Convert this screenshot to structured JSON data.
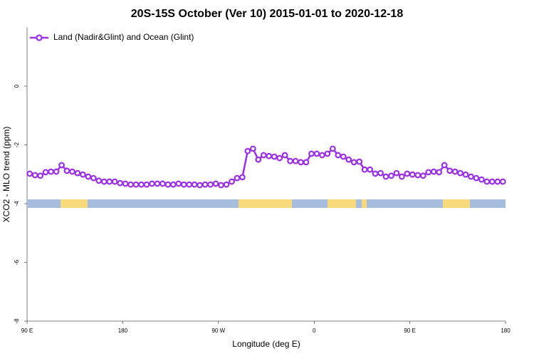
{
  "chart_data": {
    "type": "line",
    "title": "20S-15S October (Ver 10)   2015-01-01 to 2020-12-18",
    "x_label": "Longitude (deg E)",
    "y_label": "XCO2 - MLO trend (ppm)",
    "xlim": [
      90,
      540
    ],
    "xticks": [
      {
        "value": 90,
        "label": "90 E"
      },
      180,
      {
        "value": 270,
        "label": "90 W"
      },
      {
        "value": 360,
        "label": "0"
      },
      {
        "value": 450,
        "label": "90 E"
      },
      {
        "value": 540,
        "label": "180"
      }
    ],
    "ylim": [
      -8,
      2
    ],
    "yticks": [
      -8,
      -6,
      -4,
      -2,
      0
    ],
    "legend": "top-left",
    "series": [
      {
        "name": "Land (Nadir&Glint) and Ocean (Glint)",
        "color": "#9b30e8",
        "x": [
          92.5,
          97.5,
          102.5,
          107.5,
          112.5,
          117.5,
          122.5,
          127.5,
          132.5,
          137.5,
          142.5,
          147.5,
          152.5,
          157.5,
          162.5,
          167.5,
          172.5,
          177.5,
          182.5,
          187.5,
          192.5,
          197.5,
          202.5,
          207.5,
          212.5,
          217.5,
          222.5,
          227.5,
          232.5,
          237.5,
          242.5,
          247.5,
          252.5,
          257.5,
          262.5,
          267.5,
          272.5,
          277.5,
          282.5,
          287.5,
          292.5,
          297.5,
          302.5,
          307.5,
          312.5,
          317.5,
          322.5,
          327.5,
          332.5,
          337.5,
          342.5,
          347.5,
          352.5,
          357.5,
          362.5,
          367.5,
          372.5,
          377.5,
          382.5,
          387.5,
          392.5,
          397.5,
          402.5,
          407.5,
          412.5,
          417.5,
          422.5,
          427.5,
          432.5,
          437.5,
          442.5,
          447.5,
          452.5,
          457.5,
          462.5,
          467.5,
          472.5,
          477.5,
          482.5,
          487.5,
          492.5,
          497.5,
          502.5,
          507.5,
          512.5,
          517.5,
          522.5,
          527.5,
          532.5,
          537.5
        ],
        "values": [
          -2.98,
          -3.03,
          -3.05,
          -2.93,
          -2.91,
          -2.91,
          -2.69,
          -2.88,
          -2.91,
          -2.96,
          -3.01,
          -3.08,
          -3.13,
          -3.22,
          -3.25,
          -3.25,
          -3.25,
          -3.3,
          -3.32,
          -3.35,
          -3.35,
          -3.35,
          -3.35,
          -3.32,
          -3.32,
          -3.32,
          -3.35,
          -3.35,
          -3.32,
          -3.35,
          -3.35,
          -3.35,
          -3.37,
          -3.35,
          -3.35,
          -3.32,
          -3.37,
          -3.35,
          -3.25,
          -3.13,
          -3.1,
          -2.21,
          -2.13,
          -2.5,
          -2.35,
          -2.38,
          -2.4,
          -2.45,
          -2.35,
          -2.55,
          -2.55,
          -2.59,
          -2.59,
          -2.3,
          -2.3,
          -2.35,
          -2.3,
          -2.13,
          -2.35,
          -2.4,
          -2.5,
          -2.59,
          -2.57,
          -2.84,
          -2.84,
          -2.98,
          -2.96,
          -3.08,
          -3.05,
          -2.96,
          -3.08,
          -2.98,
          -3.01,
          -3.03,
          -3.05,
          -2.93,
          -2.91,
          -2.93,
          -2.69,
          -2.88,
          -2.91,
          -2.96,
          -3.01,
          -3.08,
          -3.13,
          -3.18,
          -3.25,
          -3.25,
          -3.25,
          -3.25
        ]
      }
    ],
    "surface_band": {
      "y": -4,
      "ocean_color": "#a7bddd",
      "land_color": "#f8d97c",
      "land": [
        [
          121.5,
          146.9
        ],
        [
          288.9,
          339.1
        ],
        [
          372.6,
          399.4
        ],
        [
          404.7,
          409.4
        ],
        [
          481.1,
          506.5
        ]
      ]
    }
  }
}
